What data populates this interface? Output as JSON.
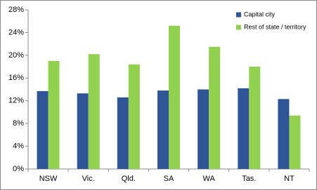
{
  "chart_data": {
    "type": "bar",
    "categories": [
      "NSW",
      "Vic.",
      "Qld.",
      "SA",
      "WA",
      "Tas.",
      "NT"
    ],
    "series": [
      {
        "name": "Capital city",
        "color": "#2f5597",
        "values": [
          13.7,
          13.3,
          12.6,
          13.8,
          14.0,
          14.2,
          12.3
        ]
      },
      {
        "name": "Rest of state / territory",
        "color": "#92d050",
        "values": [
          19.0,
          20.2,
          18.4,
          25.2,
          21.5,
          18.0,
          9.4
        ]
      }
    ],
    "ylim": [
      0,
      28
    ],
    "yticks": [
      {
        "value": 0,
        "label": "0%"
      },
      {
        "value": 4,
        "label": "4%"
      },
      {
        "value": 8,
        "label": "8%"
      },
      {
        "value": 12,
        "label": "12%"
      },
      {
        "value": 16,
        "label": "16%"
      },
      {
        "value": 20,
        "label": "20%"
      },
      {
        "value": 24,
        "label": "24%"
      },
      {
        "value": 28,
        "label": "28%"
      }
    ],
    "grid": false,
    "legend": "top-right"
  }
}
